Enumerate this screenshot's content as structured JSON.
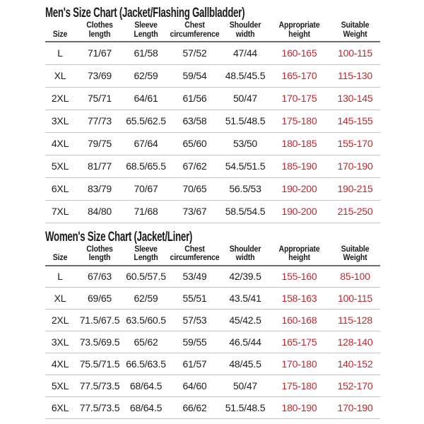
{
  "colors": {
    "text_black": "#1c1c1c",
    "red_text": "#c1272d",
    "header_line": "#6e6e6e",
    "row_line": "#c3c3c3",
    "page_bg": "#ffffff"
  },
  "columns": [
    {
      "key": "size",
      "lines": [
        "Size"
      ]
    },
    {
      "key": "clothes-length",
      "lines": [
        "Clothes",
        "length"
      ]
    },
    {
      "key": "sleeve-length",
      "lines": [
        "Sleeve",
        "Length"
      ]
    },
    {
      "key": "chest-circumference",
      "lines": [
        "Chest",
        "circumference"
      ]
    },
    {
      "key": "shoulder-width",
      "lines": [
        "Shoulder",
        "width"
      ]
    },
    {
      "key": "appropriate-height",
      "lines": [
        "Appropriate",
        "height"
      ]
    },
    {
      "key": "suitable-weight",
      "lines": [
        "Suitable",
        "Weight"
      ]
    }
  ],
  "red_column_indexes": [
    5,
    6
  ],
  "tables": [
    {
      "id": "men",
      "title": "Men's Size Chart (Jacket/Flashing Gallbladder)",
      "rows": [
        [
          "L",
          "71/67",
          "61/58",
          "57/52",
          "47/44",
          "160-165",
          "100-115"
        ],
        [
          "XL",
          "73/69",
          "62/59",
          "59/54",
          "48.5/45.5",
          "165-170",
          "115-130"
        ],
        [
          "2XL",
          "75/71",
          "64/61",
          "61/56",
          "50/47",
          "170-175",
          "130-145"
        ],
        [
          "3XL",
          "77/73",
          "65.5/62.5",
          "63/58",
          "51.5/48.5",
          "175-180",
          "145-155"
        ],
        [
          "4XL",
          "79/75",
          "67/64",
          "65/60",
          "53/50",
          "180-185",
          "155-170"
        ],
        [
          "5XL",
          "81/77",
          "68.5/65.5",
          "67/62",
          "54.5/51.5",
          "185-190",
          "170-190"
        ],
        [
          "6XL",
          "83/79",
          "70/67",
          "70/65",
          "56.5/53",
          "190-200",
          "190-215"
        ],
        [
          "7XL",
          "84/80",
          "71/68",
          "73/67",
          "58.5/54.5",
          "190-200",
          "215-250"
        ]
      ]
    },
    {
      "id": "women",
      "title": "Women's Size Chart (Jacket/Liner)",
      "rows": [
        [
          "L",
          "67/63",
          "60.5/57.5",
          "53/49",
          "42/39.5",
          "155-160",
          "85-100"
        ],
        [
          "XL",
          "69/65",
          "62/59",
          "55/51",
          "43.5/41",
          "158-163",
          "100-115"
        ],
        [
          "2XL",
          "71.5/67.5",
          "63.5/60.5",
          "57/53",
          "45/42.5",
          "160-168",
          "115-128"
        ],
        [
          "3XL",
          "73.5/69.5",
          "65/62",
          "59/55",
          "46.5/44",
          "165-175",
          "128-140"
        ],
        [
          "4XL",
          "75.5/71.5",
          "66.5/63.5",
          "61/57",
          "48/45.5",
          "170-180",
          "140-152"
        ],
        [
          "5XL",
          "77.5/73.5",
          "68/64.5",
          "64/60",
          "50/47",
          "175-180",
          "152-170"
        ],
        [
          "6XL",
          "77.5/73.5",
          "68/64.5",
          "66/62",
          "51.5/48.5",
          "180-190",
          "170-190"
        ]
      ]
    }
  ]
}
